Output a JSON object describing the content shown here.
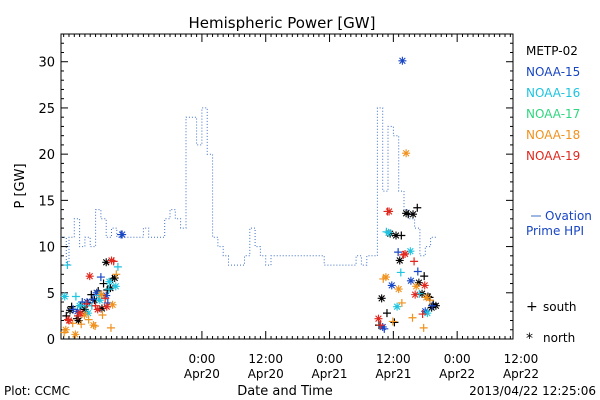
{
  "chart_data": {
    "type": "scatter",
    "title": "Hemispheric Power [GW]",
    "xlabel": "Date and Time",
    "ylabel": "P [GW]",
    "ylim": [
      0,
      33
    ],
    "y_ticks": [
      0,
      5,
      10,
      15,
      20,
      25,
      30
    ],
    "x_unit": "hours since 2013/04/19 00:00 UTC",
    "xlim": [
      -2.5,
      82.5
    ],
    "x_ticks": [
      {
        "x": 24,
        "line1": "0:00",
        "line2": "Apr20"
      },
      {
        "x": 36,
        "line1": "12:00",
        "line2": "Apr20"
      },
      {
        "x": 48,
        "line1": "0:00",
        "line2": "Apr21"
      },
      {
        "x": 60,
        "line1": "12:00",
        "line2": "Apr21"
      },
      {
        "x": 72,
        "line1": "0:00",
        "line2": "Apr22"
      },
      {
        "x": 84,
        "line1": "12:00",
        "line2": "Apr22"
      }
    ],
    "grid": false,
    "legend_position": "right",
    "ovation": {
      "label_line1": "Ovation",
      "label_line2": "Prime HPI",
      "color": "#3d6fc4",
      "points": [
        [
          -2.5,
          11
        ],
        [
          -1.5,
          11
        ],
        [
          -1.5,
          8
        ],
        [
          -1,
          8
        ],
        [
          -1,
          11
        ],
        [
          0,
          11
        ],
        [
          0,
          13
        ],
        [
          1,
          13
        ],
        [
          1,
          10
        ],
        [
          2,
          10
        ],
        [
          2,
          11
        ],
        [
          3,
          11
        ],
        [
          3,
          10
        ],
        [
          4,
          10
        ],
        [
          4,
          14
        ],
        [
          5,
          14
        ],
        [
          5,
          13
        ],
        [
          6,
          13
        ],
        [
          6,
          11
        ],
        [
          7,
          11
        ],
        [
          7,
          12
        ],
        [
          8,
          12
        ],
        [
          8,
          11
        ],
        [
          13,
          11
        ],
        [
          13,
          12
        ],
        [
          14,
          12
        ],
        [
          14,
          11
        ],
        [
          17,
          11
        ],
        [
          17,
          13
        ],
        [
          18,
          13
        ],
        [
          18,
          14
        ],
        [
          19,
          14
        ],
        [
          19,
          13
        ],
        [
          20,
          13
        ],
        [
          20,
          12
        ],
        [
          21,
          12
        ],
        [
          21,
          24
        ],
        [
          22,
          24
        ],
        [
          22,
          24
        ],
        [
          23,
          24
        ],
        [
          23,
          21
        ],
        [
          24,
          21
        ],
        [
          24,
          25
        ],
        [
          25,
          25
        ],
        [
          25,
          20
        ],
        [
          26,
          20
        ],
        [
          26,
          11
        ],
        [
          27,
          11
        ],
        [
          27,
          10
        ],
        [
          28,
          10
        ],
        [
          28,
          9
        ],
        [
          29,
          9
        ],
        [
          29,
          8
        ],
        [
          32,
          8
        ],
        [
          32,
          9
        ],
        [
          33,
          9
        ],
        [
          33,
          12
        ],
        [
          34,
          12
        ],
        [
          34,
          10
        ],
        [
          35,
          10
        ],
        [
          35,
          9
        ],
        [
          36,
          9
        ],
        [
          36,
          8
        ],
        [
          37,
          8
        ],
        [
          37,
          9
        ],
        [
          43,
          9
        ],
        [
          43,
          9
        ],
        [
          47,
          9
        ],
        [
          47,
          8
        ],
        [
          53,
          8
        ],
        [
          53,
          9
        ],
        [
          54,
          9
        ],
        [
          54,
          8
        ],
        [
          55,
          8
        ],
        [
          55,
          9
        ],
        [
          57,
          9
        ],
        [
          57,
          25
        ],
        [
          58,
          25
        ],
        [
          58,
          16
        ],
        [
          59,
          16
        ],
        [
          59,
          23
        ],
        [
          60,
          23
        ],
        [
          60,
          22
        ],
        [
          61,
          22
        ],
        [
          61,
          16
        ],
        [
          62,
          16
        ],
        [
          62,
          14
        ],
        [
          63,
          14
        ],
        [
          63,
          13
        ],
        [
          64,
          13
        ],
        [
          64,
          12
        ],
        [
          65,
          12
        ],
        [
          65,
          9
        ],
        [
          66,
          9
        ],
        [
          66,
          10
        ],
        [
          67,
          10
        ],
        [
          67,
          11
        ],
        [
          68,
          11
        ],
        [
          68,
          11
        ]
      ]
    },
    "series": [
      {
        "name": "METP-02",
        "color": "#000000",
        "south": [
          [
            -1.5,
            2.5
          ],
          [
            -0.5,
            3.5
          ],
          [
            0.5,
            2.2
          ],
          [
            1.2,
            3.6
          ],
          [
            2.5,
            3.9
          ],
          [
            3.2,
            4.8
          ],
          [
            4.5,
            5.2
          ],
          [
            5.5,
            6.0
          ],
          [
            6.2,
            5.3
          ],
          [
            7.2,
            6.5
          ],
          [
            57.3,
            1.5
          ],
          [
            58.8,
            2.8
          ],
          [
            60.2,
            1.8
          ],
          [
            61.5,
            11.2
          ],
          [
            62.8,
            13.5
          ],
          [
            64.5,
            14.2
          ],
          [
            65.8,
            6.8
          ],
          [
            66.8,
            4.5
          ],
          [
            67.5,
            3.8
          ]
        ],
        "north": [
          [
            -0.8,
            3.1
          ],
          [
            0.8,
            2.0
          ],
          [
            2.0,
            3.2
          ],
          [
            3.8,
            4.2
          ],
          [
            5.2,
            3.3
          ],
          [
            6.0,
            8.3
          ],
          [
            6.8,
            5.5
          ],
          [
            7.6,
            6.6
          ],
          [
            57.8,
            4.4
          ],
          [
            59.4,
            11.4
          ],
          [
            60.5,
            11.2
          ],
          [
            61.2,
            8.5
          ],
          [
            62.4,
            13.6
          ],
          [
            63.7,
            13.5
          ],
          [
            64.8,
            6.1
          ],
          [
            65.4,
            4.9
          ],
          [
            66.5,
            4.6
          ],
          [
            67.2,
            3.4
          ],
          [
            68.0,
            3.6
          ]
        ]
      },
      {
        "name": "NOAA-15",
        "color": "#1846c4",
        "south": [
          [
            -0.2,
            3.2
          ],
          [
            1.5,
            4.0
          ],
          [
            3.5,
            4.3
          ],
          [
            5.0,
            6.7
          ],
          [
            6.3,
            3.9
          ],
          [
            8.8,
            11.3
          ],
          [
            58.3,
            1.1
          ],
          [
            60.9,
            9.4
          ],
          [
            64.6,
            7.3
          ],
          [
            67.3,
            3.6
          ]
        ],
        "north": [
          [
            0.6,
            3.0
          ],
          [
            2.4,
            4.0
          ],
          [
            4.2,
            5.0
          ],
          [
            6.0,
            4.7
          ],
          [
            9.0,
            11.3
          ],
          [
            58.0,
            1.3
          ],
          [
            59.7,
            5.8
          ],
          [
            61.7,
            30.1
          ],
          [
            63.3,
            6.3
          ],
          [
            66.0,
            3.0
          ]
        ]
      },
      {
        "name": "NOAA-16",
        "color": "#1ec4e0",
        "south": [
          [
            -1.3,
            8.0
          ],
          [
            0.3,
            4.6
          ],
          [
            2.2,
            3.6
          ],
          [
            3.3,
            3.6
          ],
          [
            4.6,
            4.7
          ],
          [
            6.5,
            5.4
          ],
          [
            8.2,
            7.8
          ],
          [
            58.7,
            11.6
          ],
          [
            61.4,
            7.2
          ],
          [
            64.9,
            4.9
          ]
        ],
        "north": [
          [
            -1.8,
            4.6
          ],
          [
            1.0,
            3.6
          ],
          [
            2.6,
            2.8
          ],
          [
            4.8,
            4.2
          ],
          [
            6.6,
            6.2
          ],
          [
            7.8,
            5.7
          ],
          [
            59.1,
            11.5
          ],
          [
            60.7,
            3.5
          ],
          [
            63.2,
            9.5
          ],
          [
            66.4,
            2.8
          ]
        ]
      },
      {
        "name": "NOAA-17",
        "color": "#2fd67f",
        "south": [],
        "north": []
      },
      {
        "name": "NOAA-18",
        "color": "#f0921e",
        "south": [
          [
            -1.9,
            0.7
          ],
          [
            -0.3,
            1.7
          ],
          [
            1.3,
            1.6
          ],
          [
            2.7,
            2.1
          ],
          [
            3.9,
            1.4
          ],
          [
            5.3,
            2.6
          ],
          [
            6.9,
            1.2
          ],
          [
            7.9,
            7.0
          ],
          [
            58.1,
            6.5
          ],
          [
            59.9,
            1.9
          ],
          [
            61.6,
            3.9
          ],
          [
            63.6,
            2.3
          ],
          [
            65.7,
            1.2
          ],
          [
            66.9,
            4.2
          ]
        ],
        "north": [
          [
            -1.6,
            1.0
          ],
          [
            0.2,
            0.5
          ],
          [
            1.9,
            2.6
          ],
          [
            3.6,
            1.5
          ],
          [
            5.1,
            4.8
          ],
          [
            7.2,
            3.7
          ],
          [
            58.6,
            6.7
          ],
          [
            61.0,
            5.4
          ],
          [
            62.4,
            20.1
          ],
          [
            64.3,
            5.7
          ],
          [
            66.2,
            4.5
          ]
        ]
      },
      {
        "name": "NOAA-19",
        "color": "#e0281e",
        "south": [
          [
            -1.2,
            2.1
          ],
          [
            0.7,
            2.5
          ],
          [
            2.3,
            3.8
          ],
          [
            4.0,
            3.6
          ],
          [
            5.8,
            4.4
          ],
          [
            7.4,
            8.4
          ],
          [
            57.6,
            1.5
          ],
          [
            58.9,
            13.8
          ],
          [
            61.9,
            9.1
          ],
          [
            63.9,
            8.4
          ],
          [
            65.5,
            2.7
          ]
        ],
        "north": [
          [
            -1.0,
            2.0
          ],
          [
            1.1,
            2.8
          ],
          [
            2.9,
            6.8
          ],
          [
            4.4,
            3.2
          ],
          [
            6.1,
            3.5
          ],
          [
            7.0,
            8.5
          ],
          [
            57.2,
            2.2
          ],
          [
            59.2,
            13.8
          ],
          [
            62.2,
            9.2
          ],
          [
            64.1,
            4.8
          ],
          [
            65.9,
            5.8
          ]
        ]
      }
    ],
    "marker_legend": {
      "south": "south",
      "north": "north",
      "south_glyph": "+",
      "north_glyph": "*"
    }
  },
  "footer": {
    "plot_source": "Plot: CCMC",
    "timestamp": "2013/04/22 12:25:06"
  }
}
